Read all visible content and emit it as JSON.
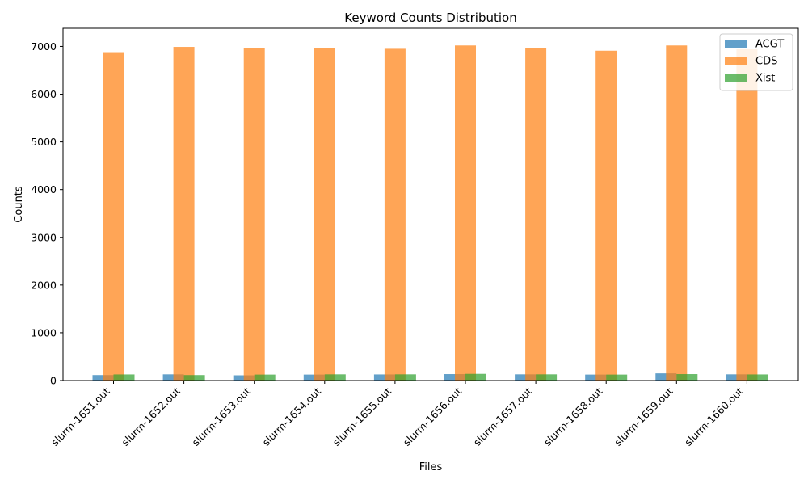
{
  "chart_data": {
    "type": "bar",
    "title": "Keyword Counts Distribution",
    "xlabel": "Files",
    "ylabel": "Counts",
    "categories": [
      "slurm-1651.out",
      "slurm-1652.out",
      "slurm-1653.out",
      "slurm-1654.out",
      "slurm-1655.out",
      "slurm-1656.out",
      "slurm-1657.out",
      "slurm-1658.out",
      "slurm-1659.out",
      "slurm-1660.out"
    ],
    "series": [
      {
        "name": "ACGT",
        "color": "#1f77b4",
        "values": [
          115,
          130,
          110,
          125,
          128,
          135,
          130,
          125,
          150,
          130
        ]
      },
      {
        "name": "CDS",
        "color": "#ff7f0e",
        "values": [
          6880,
          6990,
          6970,
          6970,
          6950,
          7020,
          6970,
          6910,
          7020,
          6940
        ]
      },
      {
        "name": "Xist",
        "color": "#2ca02c",
        "values": [
          128,
          115,
          125,
          130,
          130,
          140,
          130,
          125,
          135,
          128
        ]
      }
    ],
    "ylim": [
      0,
      7380
    ],
    "yticks": [
      0,
      1000,
      2000,
      3000,
      4000,
      5000,
      6000,
      7000
    ],
    "legend_position": "top-right",
    "grid": false
  }
}
